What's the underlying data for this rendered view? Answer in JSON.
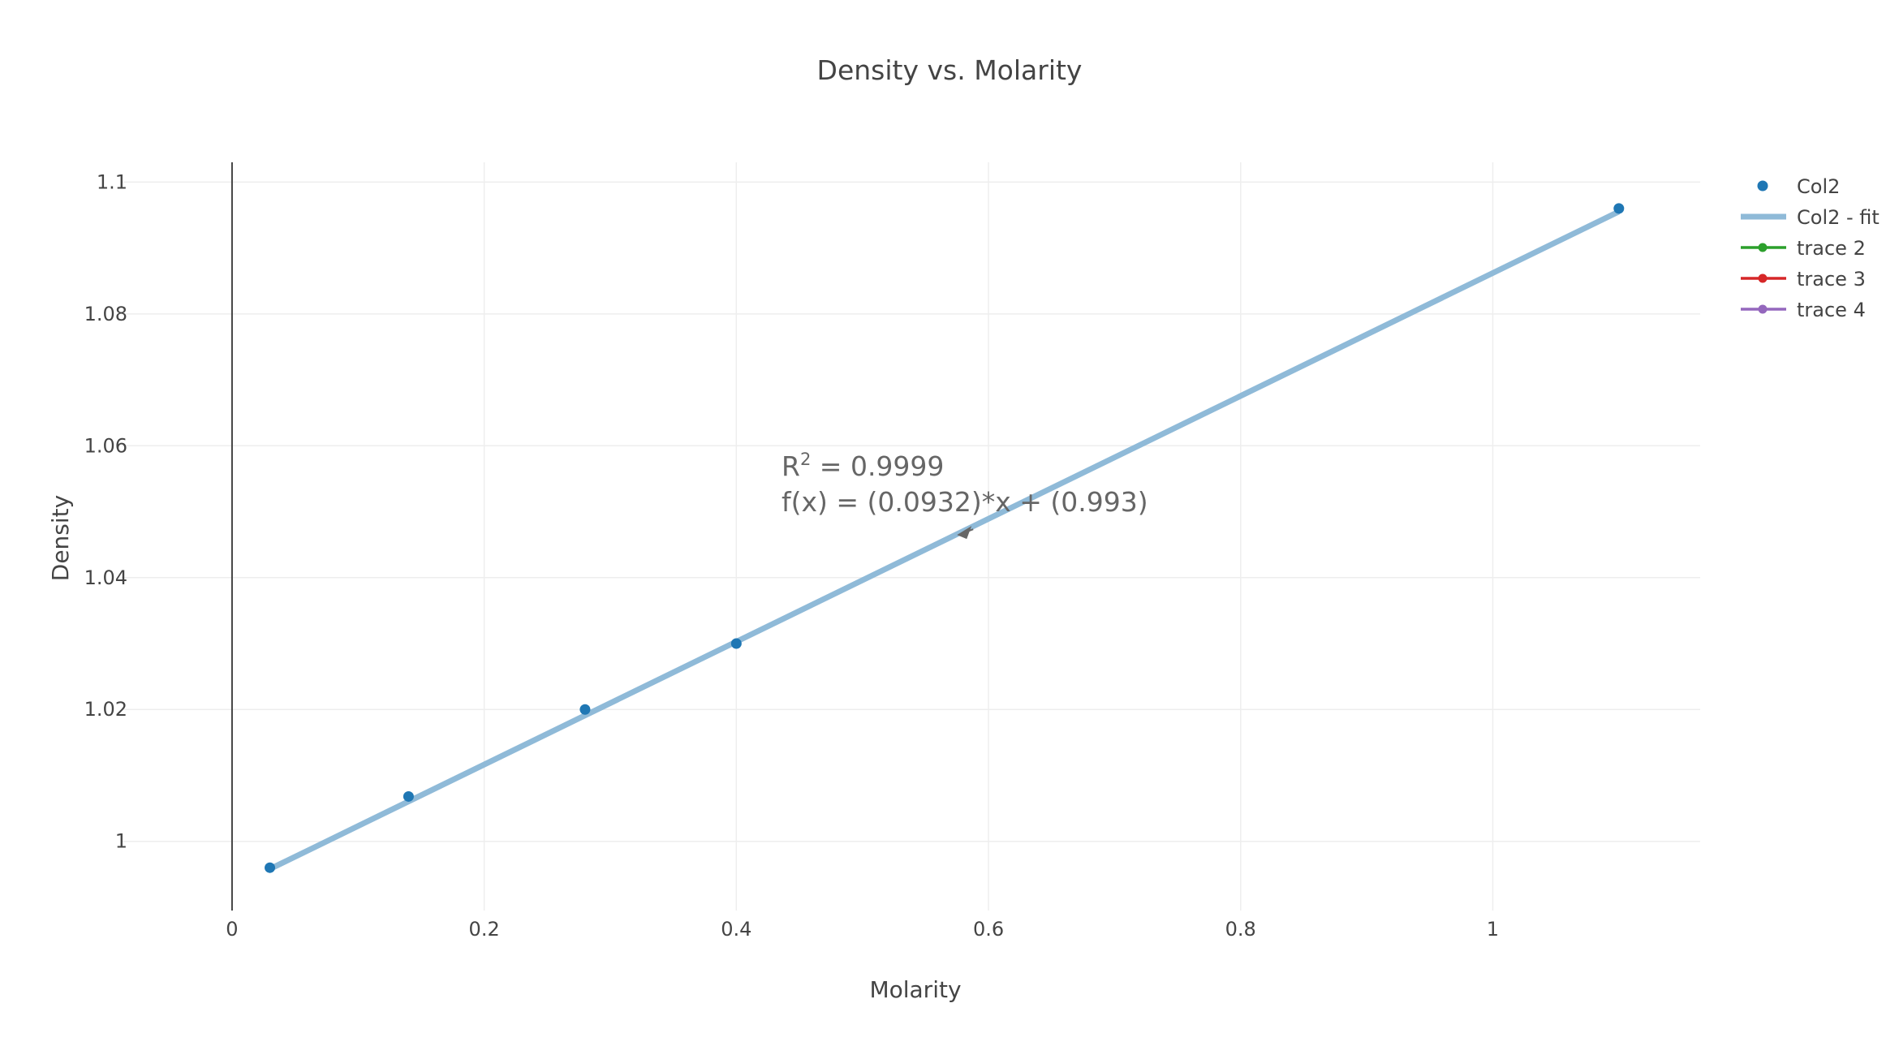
{
  "chart_data": {
    "type": "scatter",
    "title": "Density vs. Molarity",
    "xlabel": "Molarity",
    "ylabel": "Density",
    "xlim": [
      -0.0875,
      1.1645
    ],
    "ylim": [
      0.9895,
      1.103
    ],
    "x_ticks": [
      0,
      0.2,
      0.4,
      0.6,
      0.8,
      1
    ],
    "x_tick_labels": [
      "0",
      "0.2",
      "0.4",
      "0.6",
      "0.8",
      "1"
    ],
    "y_ticks": [
      1,
      1.02,
      1.04,
      1.06,
      1.08,
      1.1
    ],
    "y_tick_labels": [
      "1",
      "1.02",
      "1.04",
      "1.06",
      "1.08",
      "1.1"
    ],
    "grid": true,
    "legend_position": "top-right",
    "series": [
      {
        "name": "Col2",
        "mode": "markers",
        "color": "#1f77b4",
        "x": [
          0.03,
          0.14,
          0.28,
          0.4,
          1.1
        ],
        "y": [
          0.996,
          1.0068,
          1.02,
          1.03,
          1.096
        ]
      },
      {
        "name": "Col2 - fit",
        "mode": "line",
        "color": "#8fbad8",
        "x": [
          0.03,
          1.1
        ],
        "y": [
          0.9958,
          1.09552
        ]
      },
      {
        "name": "trace 2",
        "mode": "lines+markers",
        "color": "#2ca02c",
        "x": [],
        "y": []
      },
      {
        "name": "trace 3",
        "mode": "lines+markers",
        "color": "#d62728",
        "x": [],
        "y": []
      },
      {
        "name": "trace 4",
        "mode": "lines+markers",
        "color": "#9467bd",
        "x": [],
        "y": []
      }
    ],
    "annotation": {
      "r2_prefix": "R",
      "r2_sup": "2",
      "r2_value": " = 0.9999",
      "equation": "f(x) = (0.0932)*x + (0.993)",
      "arrow_target": {
        "x": 0.575,
        "y": 1.0466
      }
    }
  }
}
